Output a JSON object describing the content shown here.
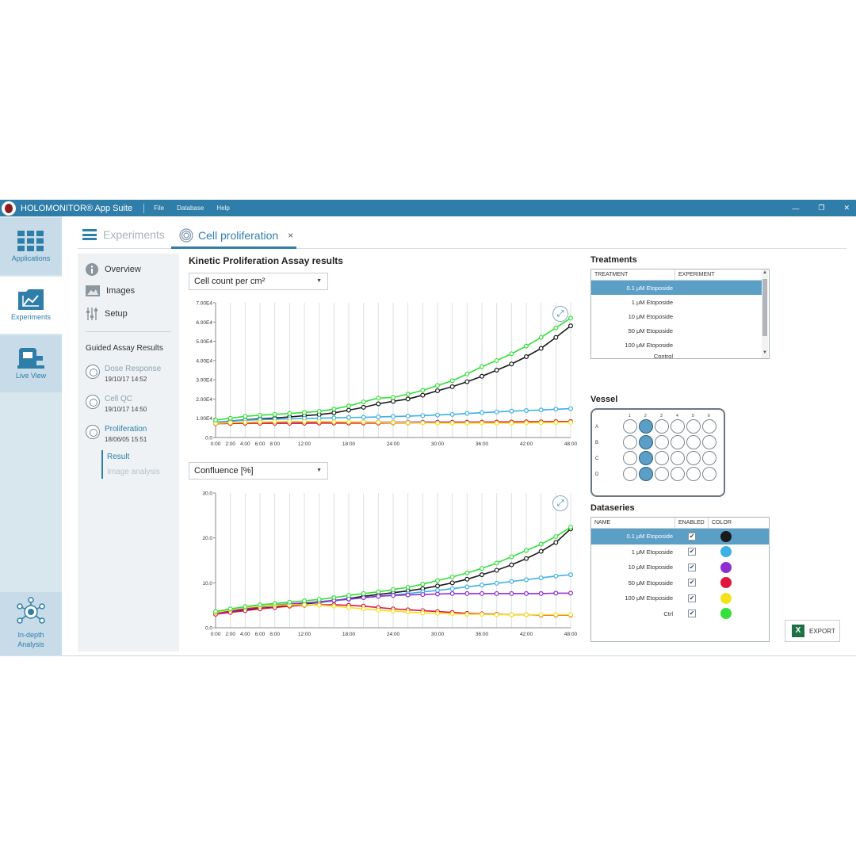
{
  "titlebar": {
    "app_title": "HOLOMONITOR® App Suite",
    "menu": [
      "File",
      "Database",
      "Help"
    ],
    "window_buttons": [
      "—",
      "❐",
      "✕"
    ]
  },
  "rail": {
    "items": [
      {
        "label": "Applications",
        "icon": "grid-icon"
      },
      {
        "label": "Experiments",
        "icon": "chart-folder-icon"
      },
      {
        "label": "Live View",
        "icon": "microscope-icon"
      },
      {
        "label": "In-depth Analysis",
        "icon": "network-icon"
      }
    ]
  },
  "tabs": {
    "experiments": "Experiments",
    "active": "Cell proliferation",
    "close": "×"
  },
  "nav": {
    "overview": "Overview",
    "images": "Images",
    "setup": "Setup",
    "guided_title": "Guided Assay Results",
    "assays": [
      {
        "name": "Dose Response",
        "date": "19/10/17 14:52"
      },
      {
        "name": "Cell QC",
        "date": "19/10/17 14:50"
      },
      {
        "name": "Proliferation",
        "date": "18/06/05 15:51"
      }
    ],
    "result": "Result",
    "image_analysis": "Image analysis"
  },
  "main": {
    "title": "Kinetic Proliferation Assay results",
    "select1": "Cell count per cm²",
    "select2": "Confluence [%]"
  },
  "treatments": {
    "label": "Treatments",
    "headers": [
      "TREATMENT",
      "EXPERIMENT"
    ],
    "rows": [
      "0.1 μM Etoposide",
      "1 μM Etoposide",
      "10 μM Etoposide",
      "50 μM Etoposide",
      "100 μM Etoposide",
      "Control"
    ],
    "selected": 0
  },
  "vessel": {
    "label": "Vessel",
    "columns": [
      "1",
      "2",
      "3",
      "4",
      "5",
      "6"
    ],
    "rows": [
      "A",
      "B",
      "C",
      "D"
    ],
    "selected_column": 2
  },
  "dataseries": {
    "label": "Dataseries",
    "headers": [
      "NAME",
      "ENABLED",
      "COLOR"
    ],
    "check": "✔",
    "rows": [
      {
        "name": "0.1 μM Etoposide",
        "color": "#1a1a1a"
      },
      {
        "name": "1 μM Etoposide",
        "color": "#3fb0e4"
      },
      {
        "name": "10 μM Etoposide",
        "color": "#8e2fcf"
      },
      {
        "name": "50 μM Etoposide",
        "color": "#e0163c"
      },
      {
        "name": "100 μM Etoposide",
        "color": "#f2e21d"
      },
      {
        "name": "Ctrl",
        "color": "#34e03a"
      }
    ]
  },
  "export_label": "EXPORT",
  "chart_data": [
    {
      "type": "line",
      "title": "",
      "xlabel": "",
      "ylabel": "",
      "x_ticks": [
        "0:00",
        "2:00",
        "4:00",
        "6:00",
        "8:00",
        "12:00",
        "18:00",
        "24:00",
        "30:00",
        "36:00",
        "42:00",
        "48:00"
      ],
      "y_ticks": [
        "0.0",
        "1.00E4",
        "2.00E4",
        "3.00E4",
        "4.00E4",
        "5.00E4",
        "6.00E4",
        "7.00E4"
      ],
      "ylim": [
        0,
        70000
      ],
      "xlim": [
        0,
        48
      ],
      "grid": true,
      "x": [
        0,
        2,
        4,
        6,
        8,
        10,
        12,
        14,
        16,
        18,
        20,
        22,
        24,
        26,
        28,
        30,
        32,
        34,
        36,
        38,
        40,
        42,
        44,
        46,
        48
      ],
      "series": [
        {
          "name": "0.1 μM Etoposide",
          "color": "#1a1a1a",
          "values": [
            7500,
            8600,
            9200,
            9700,
            10100,
            10700,
            11300,
            11900,
            12800,
            14200,
            15700,
            17500,
            18800,
            20000,
            22000,
            24300,
            26400,
            29000,
            31800,
            35000,
            38200,
            42000,
            46300,
            52000,
            58000
          ]
        },
        {
          "name": "1 μM Etoposide",
          "color": "#3fb0e4",
          "values": [
            8000,
            8500,
            9000,
            9300,
            9500,
            9700,
            9900,
            10000,
            10200,
            10400,
            10500,
            10700,
            10900,
            11100,
            11400,
            11700,
            12000,
            12500,
            12900,
            13300,
            13700,
            14000,
            14300,
            14700,
            15000
          ]
        },
        {
          "name": "10 μM Etoposide",
          "color": "#8e2fcf",
          "values": [
            7500,
            7800,
            7900,
            8000,
            8000,
            8000,
            8000,
            8000,
            8000,
            8000,
            8000,
            8000,
            8000,
            8000,
            8000,
            8000,
            8000,
            8000,
            8000,
            8000,
            8000,
            8000,
            8100,
            8200,
            8300
          ]
        },
        {
          "name": "50 μM Etoposide",
          "color": "#e0163c",
          "values": [
            7200,
            7300,
            7400,
            7400,
            7400,
            7400,
            7400,
            7500,
            7500,
            7500,
            7500,
            7500,
            7600,
            7600,
            7700,
            7700,
            7800,
            7800,
            7900,
            8000,
            8100,
            8200,
            8200,
            8300,
            8300
          ]
        },
        {
          "name": "100 μM Etoposide",
          "color": "#f2e21d",
          "values": [
            7400,
            7700,
            7900,
            8100,
            8200,
            8300,
            8300,
            8300,
            8200,
            8100,
            8000,
            7900,
            7800,
            7700,
            7600,
            7500,
            7500,
            7500,
            7500,
            7500,
            7500,
            7600,
            7700,
            7800,
            7900
          ]
        },
        {
          "name": "Ctrl",
          "color": "#34e03a",
          "values": [
            9000,
            10000,
            11000,
            11600,
            12000,
            12500,
            13000,
            13600,
            14800,
            16400,
            18500,
            20500,
            20800,
            22500,
            24500,
            27000,
            29500,
            33000,
            36800,
            40000,
            43500,
            47500,
            52000,
            57000,
            62000
          ]
        }
      ]
    },
    {
      "type": "line",
      "title": "",
      "xlabel": "",
      "ylabel": "",
      "x_ticks": [
        "0:00",
        "2:00",
        "4:00",
        "6:00",
        "8:00",
        "12:00",
        "18:00",
        "24:00",
        "30:00",
        "36:00",
        "42:00",
        "48:00"
      ],
      "y_ticks": [
        "0.0",
        "10.0",
        "20.0",
        "30.0"
      ],
      "ylim": [
        0,
        30
      ],
      "xlim": [
        0,
        48
      ],
      "grid": true,
      "x": [
        0,
        2,
        4,
        6,
        8,
        10,
        12,
        14,
        16,
        18,
        20,
        22,
        24,
        26,
        28,
        30,
        32,
        34,
        36,
        38,
        40,
        42,
        44,
        46,
        48
      ],
      "series": [
        {
          "name": "0.1 μM Etoposide",
          "color": "#1a1a1a",
          "values": [
            3.2,
            3.6,
            4.0,
            4.3,
            4.6,
            5.0,
            5.3,
            5.6,
            6.0,
            6.5,
            7.0,
            7.4,
            7.8,
            8.2,
            8.7,
            9.3,
            10.0,
            10.8,
            11.8,
            12.8,
            14.0,
            15.4,
            17.0,
            19.0,
            22.0
          ]
        },
        {
          "name": "1 μM Etoposide",
          "color": "#3fb0e4",
          "values": [
            3.2,
            3.8,
            4.4,
            4.8,
            5.1,
            5.3,
            5.5,
            5.7,
            6.0,
            6.3,
            6.7,
            7.0,
            7.3,
            7.6,
            8.0,
            8.3,
            8.7,
            9.1,
            9.5,
            9.9,
            10.3,
            10.7,
            11.1,
            11.5,
            11.8
          ]
        },
        {
          "name": "10 μM Etoposide",
          "color": "#8e2fcf",
          "values": [
            3.2,
            3.7,
            4.2,
            4.6,
            5.0,
            5.3,
            5.5,
            5.8,
            6.1,
            6.4,
            6.7,
            7.0,
            7.2,
            7.3,
            7.4,
            7.5,
            7.6,
            7.6,
            7.6,
            7.6,
            7.6,
            7.6,
            7.6,
            7.7,
            7.7
          ]
        },
        {
          "name": "50 μM Etoposide",
          "color": "#e0163c",
          "values": [
            3.0,
            3.4,
            3.8,
            4.2,
            4.5,
            4.8,
            5.0,
            5.1,
            5.1,
            5.0,
            4.8,
            4.5,
            4.2,
            4.0,
            3.8,
            3.6,
            3.4,
            3.2,
            3.1,
            3.0,
            2.9,
            2.9,
            2.8,
            2.8,
            2.8
          ]
        },
        {
          "name": "100 μM Etoposide",
          "color": "#f2e21d",
          "values": [
            3.4,
            4.0,
            4.5,
            4.8,
            5.0,
            5.1,
            5.1,
            5.0,
            4.8,
            4.5,
            4.2,
            3.9,
            3.7,
            3.5,
            3.3,
            3.2,
            3.1,
            3.0,
            3.0,
            2.9,
            2.9,
            2.9,
            2.9,
            2.9,
            2.9
          ]
        },
        {
          "name": "Ctrl",
          "color": "#34e03a",
          "values": [
            3.6,
            4.2,
            4.7,
            5.1,
            5.4,
            5.7,
            6.0,
            6.3,
            6.7,
            7.2,
            7.6,
            8.0,
            8.5,
            9.0,
            9.7,
            10.5,
            11.3,
            12.2,
            13.2,
            14.4,
            15.8,
            17.2,
            18.6,
            20.3,
            22.4
          ]
        }
      ]
    }
  ]
}
